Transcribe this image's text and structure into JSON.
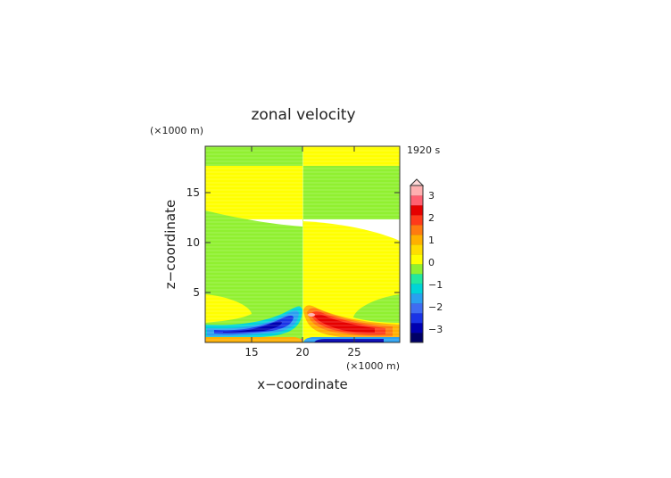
{
  "chart_data": {
    "type": "heatmap",
    "title": "zonal velocity",
    "xlabel": "x−coordinate",
    "ylabel": "z−coordinate",
    "x_unit": "(×1000 m)",
    "y_unit": "(×1000 m)",
    "time_label": "1920 s",
    "xlim": [
      10.2,
      29.5
    ],
    "ylim": [
      0,
      19.8
    ],
    "x_ticks": [
      "15",
      "20",
      "25"
    ],
    "y_ticks": [
      "5",
      "10",
      "15"
    ],
    "colorbar": {
      "tick_labels": [
        "3",
        "2",
        "1",
        "0",
        "−1",
        "−2",
        "−3"
      ],
      "range": [
        -3.5,
        3.5
      ],
      "level_colors": [
        "#000066",
        "#0000b0",
        "#1a33e6",
        "#3f6cf2",
        "#2aa0f0",
        "#00d4d8",
        "#22e8a0",
        "#90f030",
        "#ffff00",
        "#ffdd00",
        "#ffb000",
        "#ff7a10",
        "#ff3a1a",
        "#e60000",
        "#ff6070",
        "#ffb0b0"
      ]
    },
    "fields": [
      {
        "name": "positive-upper-band",
        "value": 0.1
      },
      {
        "name": "negative-upper-band",
        "value": -0.1
      },
      {
        "name": "negative-jet-left",
        "value": -2.3
      },
      {
        "name": "positive-jet-right",
        "value": 2.4
      }
    ]
  }
}
